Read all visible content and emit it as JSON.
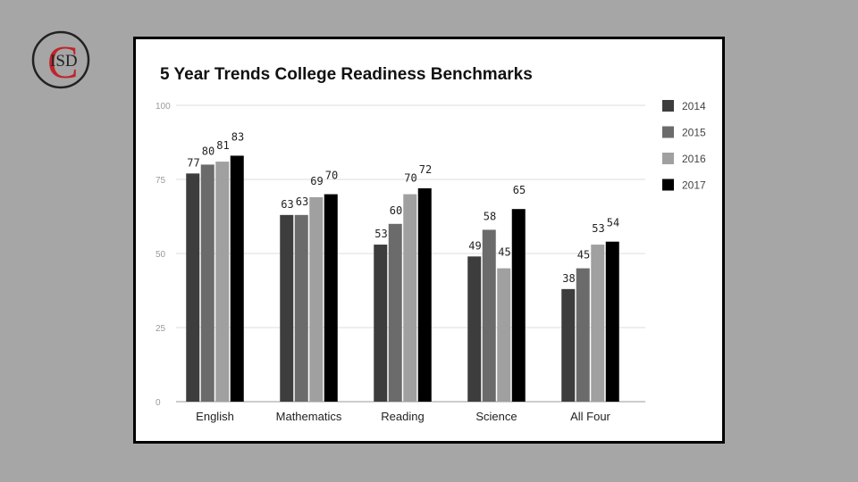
{
  "logo": {
    "text": "ISD",
    "letter": "C",
    "ring_color": "#222222",
    "letter_color": "#c0242c"
  },
  "chart_data": {
    "type": "bar",
    "title": "5 Year Trends  College Readiness Benchmarks",
    "categories": [
      "English",
      "Mathematics",
      "Reading",
      "Science",
      "All Four"
    ],
    "series": [
      {
        "name": "2014",
        "color": "#3d3d3d",
        "values": [
          77,
          63,
          53,
          49,
          38
        ]
      },
      {
        "name": "2015",
        "color": "#6b6b6b",
        "values": [
          80,
          63,
          60,
          58,
          45
        ]
      },
      {
        "name": "2016",
        "color": "#a0a0a0",
        "values": [
          81,
          69,
          70,
          45,
          53
        ]
      },
      {
        "name": "2017",
        "color": "#000000",
        "values": [
          83,
          70,
          72,
          65,
          54
        ]
      }
    ],
    "yticks": [
      0,
      25,
      50,
      75,
      100
    ],
    "ylim": [
      0,
      100
    ],
    "grid": true,
    "legend": "right"
  }
}
